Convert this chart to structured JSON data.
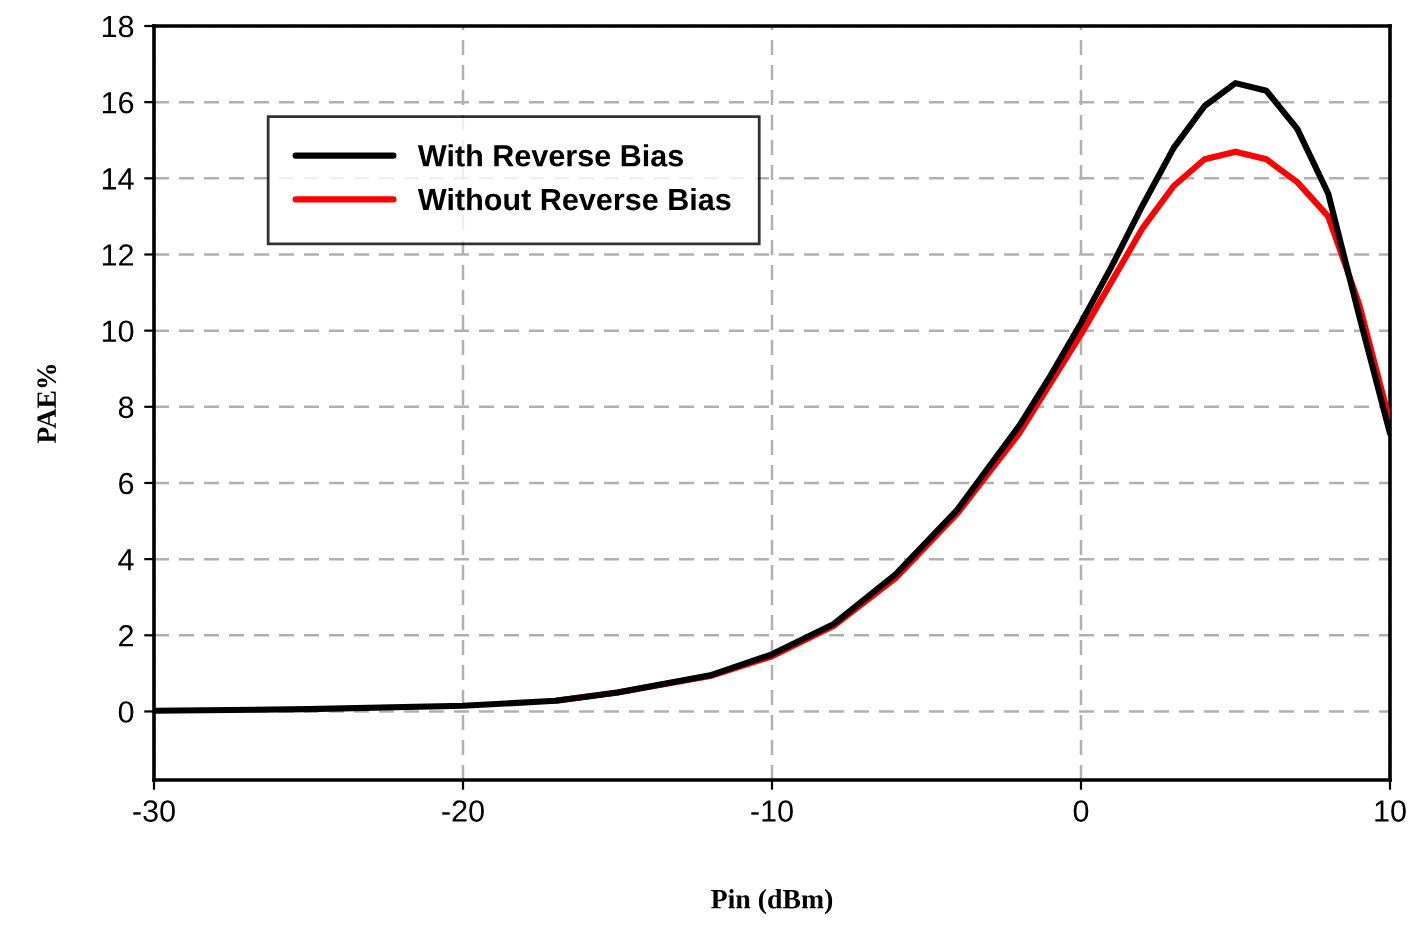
{
  "chart_data": {
    "type": "line",
    "xlabel": "Pin (dBm)",
    "ylabel": "PAE%",
    "x": [
      -30,
      -25,
      -20,
      -17,
      -15,
      -12,
      -10,
      -8,
      -6,
      -4,
      -2,
      -1,
      0,
      1,
      2,
      3,
      4,
      5,
      6,
      7,
      8,
      9,
      10
    ],
    "series": [
      {
        "name": "With Reverse Bias",
        "color": "#000000",
        "values": [
          0.02,
          0.06,
          0.15,
          0.28,
          0.5,
          0.95,
          1.5,
          2.3,
          3.6,
          5.3,
          7.5,
          8.8,
          10.2,
          11.7,
          13.3,
          14.8,
          15.9,
          16.5,
          16.3,
          15.3,
          13.6,
          10.4,
          7.3
        ]
      },
      {
        "name": "Without Reverse Bias",
        "color": "#ff0000",
        "values": [
          null,
          null,
          null,
          0.28,
          0.5,
          0.93,
          1.45,
          2.25,
          3.5,
          5.2,
          7.3,
          8.6,
          9.9,
          11.3,
          12.7,
          13.8,
          14.5,
          14.7,
          14.5,
          13.9,
          13.0,
          10.7,
          7.6
        ]
      }
    ],
    "xlim": [
      -30,
      10
    ],
    "xticks": [
      -30,
      -20,
      -10,
      0,
      10
    ],
    "ylim": [
      -1.8,
      18
    ],
    "yticks": [
      0,
      2,
      4,
      6,
      8,
      10,
      12,
      14,
      16,
      18
    ],
    "grid": true,
    "legend": "top left",
    "marker": "none",
    "line_style": "solid"
  }
}
